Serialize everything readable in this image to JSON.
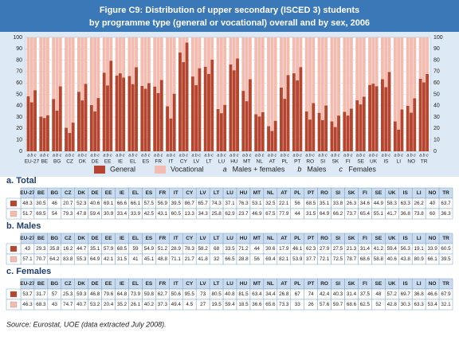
{
  "chart_data": {
    "type": "stacked-bar",
    "title": "Figure C9: Distribution of upper secondary (ISCED 3) students",
    "subtitle": "by programme type (general or vocational) overall and by sex, 2006",
    "categories": [
      "EU-27",
      "BE",
      "BG",
      "CZ",
      "DK",
      "DE",
      "EE",
      "IE",
      "EL",
      "ES",
      "FR",
      "IT",
      "CY",
      "LV",
      "LT",
      "LU",
      "HU",
      "MT",
      "NL",
      "AT",
      "PL",
      "PT",
      "RO",
      "SI",
      "SK",
      "FI",
      "SE",
      "UK",
      "IS",
      "LI",
      "NO",
      "TR"
    ],
    "series": [
      {
        "name": "General",
        "color": "#b5452e"
      },
      {
        "name": "Vocational",
        "color": "#f3bcb0"
      }
    ],
    "groups": [
      {
        "letter": "a",
        "name": "Males + females",
        "table_title": "a. Total",
        "general": [
          48.3,
          30.5,
          46.0,
          20.7,
          52.3,
          40.6,
          69.1,
          66.6,
          66.1,
          57.5,
          56.9,
          39.5,
          86.7,
          65.7,
          74.3,
          37.1,
          76.3,
          53.1,
          32.5,
          22.1,
          56.0,
          68.5,
          35.1,
          33.8,
          26.3,
          34.6,
          44.9,
          58.3,
          63.3,
          26.2,
          40.0,
          63.7
        ],
        "vocational": [
          51.7,
          69.5,
          54.0,
          79.3,
          47.8,
          59.4,
          30.9,
          33.4,
          33.9,
          42.5,
          43.1,
          60.5,
          13.3,
          34.3,
          25.8,
          62.9,
          23.7,
          46.9,
          67.5,
          77.9,
          44.0,
          31.5,
          64.9,
          66.2,
          73.7,
          65.4,
          55.1,
          41.7,
          36.8,
          73.8,
          60.0,
          36.3
        ]
      },
      {
        "letter": "b",
        "name": "Males",
        "table_title": "b. Males",
        "general": [
          43.0,
          29.3,
          35.8,
          16.2,
          44.7,
          35.1,
          57.9,
          68.5,
          59.0,
          54.9,
          51.2,
          28.9,
          78.3,
          58.2,
          68.0,
          33.5,
          71.2,
          44.0,
          30.6,
          17.9,
          46.1,
          62.3,
          27.9,
          27.5,
          21.3,
          31.4,
          41.2,
          59.4,
          56.3,
          19.1,
          33.9,
          60.5
        ],
        "vocational": [
          57.1,
          70.7,
          64.2,
          83.8,
          55.3,
          64.9,
          42.1,
          31.5,
          41.0,
          45.1,
          48.8,
          71.1,
          21.7,
          41.8,
          32.0,
          66.5,
          28.8,
          56.0,
          69.4,
          82.1,
          53.9,
          37.7,
          72.1,
          72.5,
          78.7,
          68.6,
          58.8,
          40.6,
          43.8,
          80.9,
          66.1,
          39.5
        ]
      },
      {
        "letter": "c",
        "name": "Females",
        "table_title": "c. Females",
        "general": [
          53.7,
          31.7,
          57.0,
          25.3,
          59.3,
          46.8,
          79.6,
          64.8,
          73.9,
          59.8,
          62.7,
          50.6,
          95.5,
          73.0,
          80.5,
          40.8,
          81.5,
          63.4,
          34.4,
          26.8,
          67.0,
          74.0,
          42.4,
          40.3,
          31.4,
          37.5,
          48.0,
          57.2,
          69.7,
          36.8,
          46.6,
          67.9
        ],
        "vocational": [
          46.3,
          68.3,
          43.0,
          74.7,
          40.7,
          53.2,
          20.4,
          35.2,
          26.1,
          40.2,
          37.3,
          49.4,
          4.5,
          27.0,
          19.5,
          59.4,
          18.5,
          36.6,
          65.6,
          73.3,
          33.0,
          26.0,
          57.6,
          59.7,
          68.6,
          62.5,
          52.0,
          42.8,
          30.3,
          63.3,
          53.4,
          32.1
        ]
      }
    ],
    "ylim": [
      0,
      100
    ],
    "yticks": [
      0,
      10,
      20,
      30,
      40,
      50,
      60,
      70,
      80,
      90,
      100
    ],
    "grid": true,
    "source": "Source: Eurostat, UOE (data extracted July 2008)."
  }
}
